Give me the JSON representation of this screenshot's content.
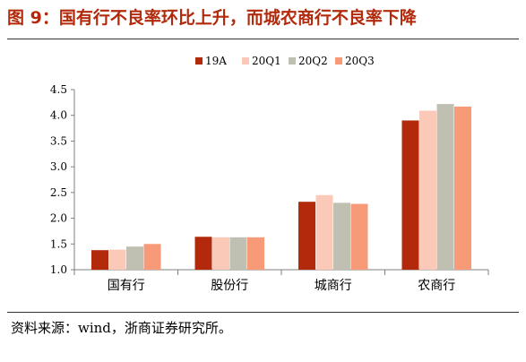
{
  "figure": {
    "title": "图 9：国有行不良率环比上升，而城农商行不良率下降",
    "source": "资料来源：wind，浙商证券研究所。"
  },
  "chart_data": {
    "type": "bar",
    "categories": [
      "国有行",
      "股份行",
      "城商行",
      "农商行"
    ],
    "series": [
      {
        "name": "19A",
        "color": "#b22a0b",
        "values": [
          1.38,
          1.64,
          2.32,
          3.9
        ]
      },
      {
        "name": "20Q1",
        "color": "#fbc9b8",
        "values": [
          1.39,
          1.63,
          2.45,
          4.09
        ]
      },
      {
        "name": "20Q2",
        "color": "#bfbfb2",
        "values": [
          1.45,
          1.63,
          2.3,
          4.22
        ]
      },
      {
        "name": "20Q3",
        "color": "#f79a78",
        "values": [
          1.5,
          1.63,
          2.28,
          4.17
        ]
      }
    ],
    "ylim": [
      1.0,
      4.5
    ],
    "yticks": [
      "1.0",
      "1.5",
      "2.0",
      "2.5",
      "3.0",
      "3.5",
      "4.0",
      "4.5"
    ],
    "legend": "top",
    "grid": false
  }
}
